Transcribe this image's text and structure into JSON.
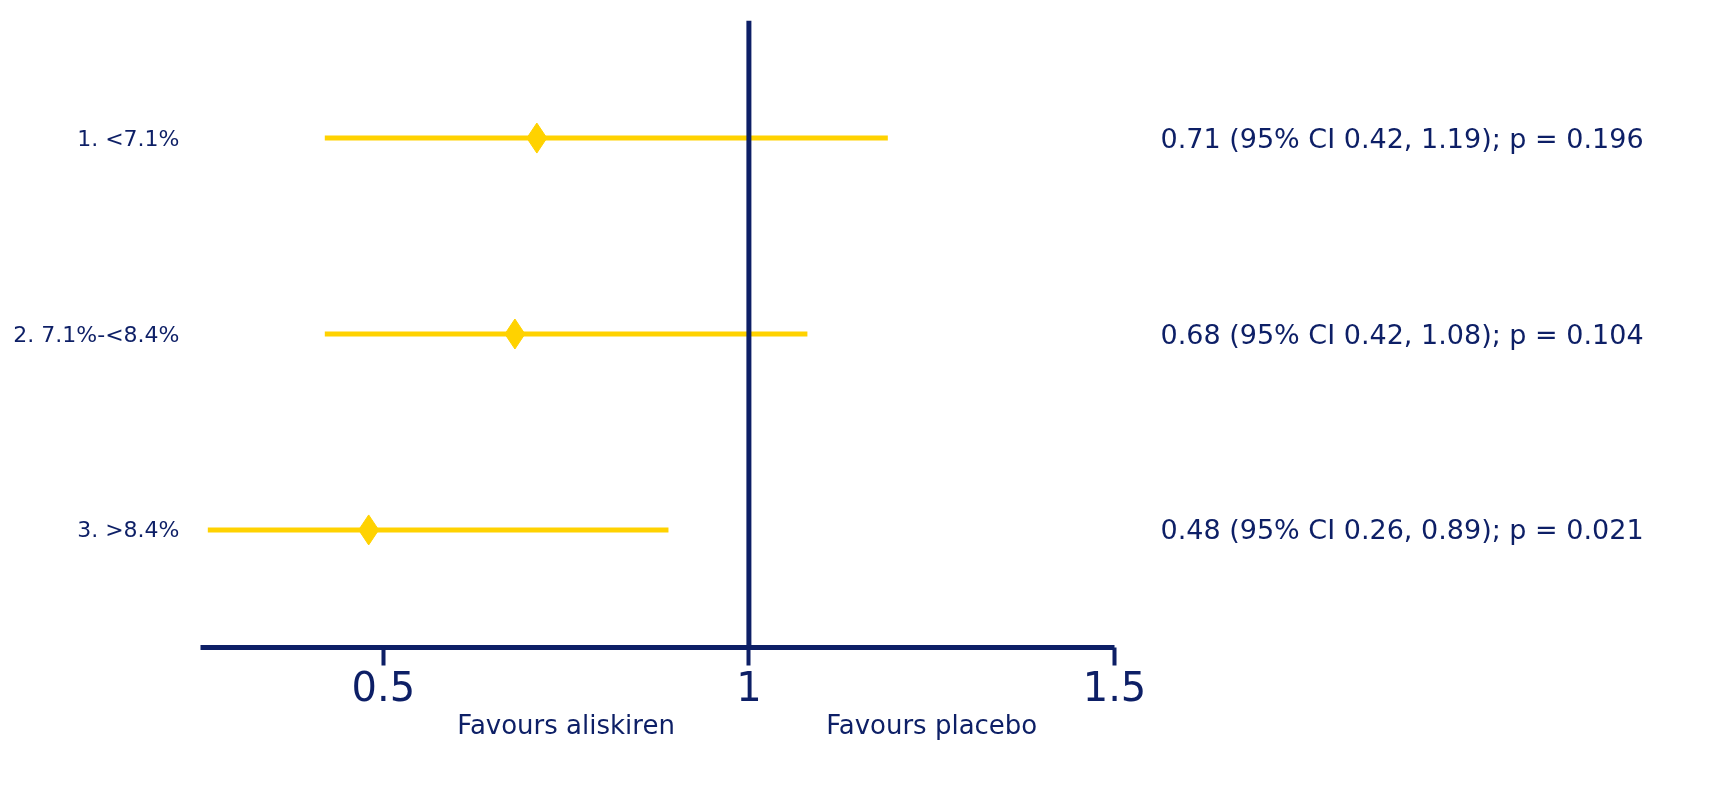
{
  "chart_data": {
    "type": "scatter",
    "orientation": "horizontal",
    "categories": [
      "1. <7.1%",
      "2. 7.1%-<8.4%",
      "3. >8.4%"
    ],
    "values": [
      0.71,
      0.68,
      0.48
    ],
    "errors": [
      [
        0.42,
        1.19
      ],
      [
        0.42,
        1.08
      ],
      [
        0.26,
        0.89
      ]
    ],
    "value_labels": [
      "0.71 (95% CI 0.42, 1.19); p = 0.196",
      "0.68 (95% CI 0.42, 1.08); p = 0.104",
      "0.48 (95% CI 0.26, 0.89); p = 0.021"
    ],
    "color": "#ffd200",
    "marker": "diamond",
    "xlim": [
      0.25,
      1.5
    ],
    "xticks": [
      0.5,
      1,
      1.5
    ],
    "grid": false,
    "ref_lines": [
      {
        "axis": "x",
        "value": 1,
        "color": "#0d1f66"
      }
    ],
    "annotations": [
      "Favours aliskiren",
      "Favours placebo"
    ]
  }
}
